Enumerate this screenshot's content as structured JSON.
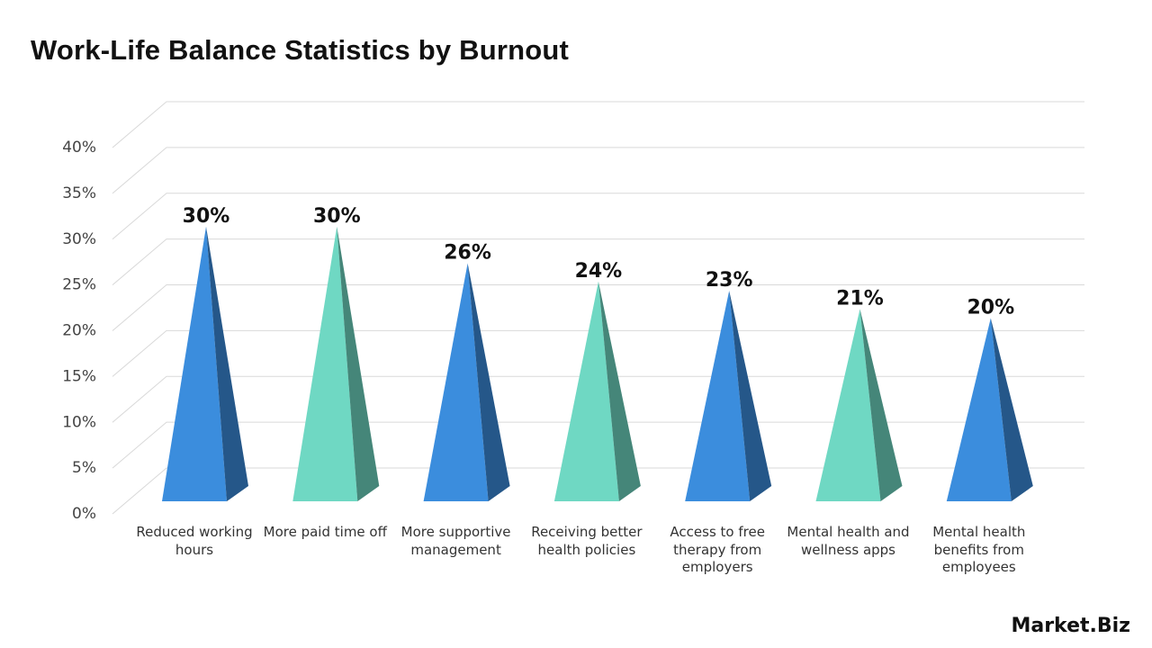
{
  "chart_data": {
    "type": "pyramid",
    "title": "Work-Life Balance Statistics by Burnout",
    "categories": [
      "Reduced working hours",
      "More paid time off",
      "More supportive management",
      "Receiving better health policies",
      "Access to free therapy from employers",
      "Mental health and wellness apps",
      "Mental health benefits from employees"
    ],
    "values": [
      30,
      30,
      26,
      24,
      23,
      21,
      20
    ],
    "value_labels": [
      "30%",
      "30%",
      "26%",
      "24%",
      "23%",
      "21%",
      "20%"
    ],
    "colors": [
      "#3b8ddd",
      "#6fd8c3",
      "#3b8ddd",
      "#6fd8c3",
      "#3b8ddd",
      "#6fd8c3",
      "#3b8ddd"
    ],
    "ylim": [
      0,
      40
    ],
    "yticks": [
      {
        "value": 0,
        "label": "0%"
      },
      {
        "value": 5,
        "label": "5%"
      },
      {
        "value": 10,
        "label": "10%"
      },
      {
        "value": 15,
        "label": "15%"
      },
      {
        "value": 20,
        "label": "20%"
      },
      {
        "value": 25,
        "label": "25%"
      },
      {
        "value": 30,
        "label": "30%"
      },
      {
        "value": 35,
        "label": "35%"
      },
      {
        "value": 40,
        "label": "40%"
      }
    ],
    "grid": true
  },
  "brand": "Market.Biz"
}
